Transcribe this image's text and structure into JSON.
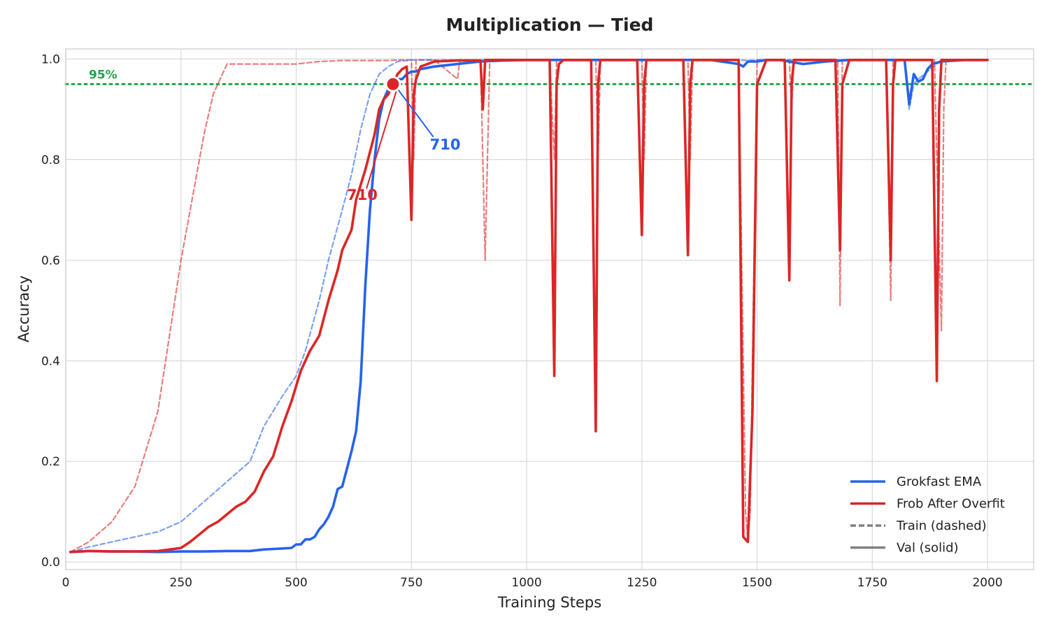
{
  "chart_data": {
    "type": "line",
    "title": "Multiplication — Tied",
    "xlabel": "Training Steps",
    "ylabel": "Accuracy",
    "xlim": [
      0,
      2100
    ],
    "ylim": [
      -0.015,
      1.02
    ],
    "x_ticks": [
      0,
      250,
      500,
      750,
      1000,
      1250,
      1500,
      1750,
      2000
    ],
    "x_tick_labels": [
      "0",
      "250",
      "500",
      "750",
      "1000",
      "1250",
      "1500",
      "1750",
      "2000"
    ],
    "y_ticks": [
      0.0,
      0.2,
      0.4,
      0.6,
      0.8,
      1.0
    ],
    "y_tick_labels": [
      "0.0",
      "0.2",
      "0.4",
      "0.6",
      "0.8",
      "1.0"
    ],
    "grid": true,
    "legend_position": "lower-right",
    "threshold": {
      "value": 0.95,
      "label": "95%",
      "color": "#22a34a",
      "style": "dotted"
    },
    "legend": [
      {
        "label": "Grokfast EMA",
        "color": "#2563eb",
        "style": "solid"
      },
      {
        "label": "Frob After Overfit",
        "color": "#dc2626",
        "style": "solid"
      },
      {
        "label": "Train (dashed)",
        "color": "#808080",
        "style": "dashed"
      },
      {
        "label": "Val (solid)",
        "color": "#808080",
        "style": "solid"
      }
    ],
    "annotations": [
      {
        "label": "710",
        "color": "#2563eb",
        "point": [
          710,
          0.95
        ],
        "text_at": [
          790,
          0.82
        ]
      },
      {
        "label": "710",
        "color": "#dc2626",
        "point": [
          710,
          0.95
        ],
        "text_at": [
          610,
          0.72
        ]
      }
    ],
    "series": [
      {
        "name": "Grokfast EMA",
        "role": "val",
        "color": "#2563eb",
        "style": "solid",
        "x": [
          10,
          50,
          100,
          150,
          200,
          250,
          300,
          350,
          400,
          430,
          470,
          490,
          500,
          510,
          520,
          530,
          540,
          550,
          560,
          570,
          580,
          590,
          600,
          610,
          620,
          630,
          640,
          650,
          660,
          670,
          680,
          690,
          700,
          710,
          720,
          730,
          740,
          750,
          760,
          770,
          800,
          850,
          900,
          950,
          1000,
          1050,
          1100,
          1200,
          1300,
          1400,
          1460,
          1470,
          1480,
          1500,
          1520,
          1550,
          1600,
          1650,
          1700,
          1750,
          1800,
          1820,
          1830,
          1840,
          1850,
          1860,
          1870,
          1880,
          1900,
          1950,
          2000
        ],
        "y": [
          0.02,
          0.022,
          0.021,
          0.021,
          0.02,
          0.021,
          0.021,
          0.022,
          0.022,
          0.025,
          0.027,
          0.028,
          0.035,
          0.035,
          0.045,
          0.045,
          0.05,
          0.065,
          0.075,
          0.09,
          0.11,
          0.145,
          0.15,
          0.185,
          0.22,
          0.26,
          0.36,
          0.55,
          0.7,
          0.8,
          0.88,
          0.92,
          0.94,
          0.95,
          0.96,
          0.96,
          0.97,
          0.975,
          0.975,
          0.98,
          0.985,
          0.99,
          0.995,
          0.997,
          0.998,
          0.998,
          0.998,
          0.998,
          0.998,
          0.998,
          0.99,
          0.985,
          0.995,
          0.995,
          0.998,
          0.998,
          0.99,
          0.995,
          0.998,
          0.998,
          0.998,
          0.998,
          0.91,
          0.97,
          0.955,
          0.96,
          0.98,
          0.99,
          0.995,
          0.998,
          0.998
        ]
      },
      {
        "name": "Grokfast EMA",
        "role": "train",
        "color": "#2563eb",
        "style": "dashed",
        "x": [
          10,
          50,
          100,
          150,
          200,
          250,
          300,
          350,
          400,
          430,
          470,
          500,
          520,
          550,
          570,
          600,
          620,
          640,
          660,
          680,
          700,
          710,
          720,
          750,
          800,
          850,
          900,
          950,
          1000,
          1200,
          1460,
          1480,
          1500,
          1700,
          1800,
          1820,
          1830,
          1840,
          1850,
          1900,
          1950,
          2000
        ],
        "y": [
          0.02,
          0.03,
          0.04,
          0.05,
          0.06,
          0.08,
          0.12,
          0.16,
          0.2,
          0.27,
          0.33,
          0.37,
          0.42,
          0.52,
          0.6,
          0.7,
          0.77,
          0.86,
          0.93,
          0.97,
          0.985,
          0.99,
          0.995,
          0.998,
          0.998,
          0.998,
          0.998,
          0.998,
          0.998,
          0.998,
          0.998,
          0.997,
          0.998,
          0.998,
          0.998,
          0.998,
          0.9,
          0.95,
          0.96,
          0.998,
          0.998,
          0.998
        ]
      },
      {
        "name": "Frob After Overfit",
        "role": "train",
        "color": "#dc2626",
        "style": "dashed",
        "x": [
          10,
          50,
          100,
          150,
          200,
          250,
          300,
          320,
          350,
          380,
          420,
          460,
          500,
          550,
          600,
          650,
          700,
          720,
          740,
          750,
          755,
          760,
          800,
          850,
          855,
          860,
          900,
          905,
          910,
          915,
          920,
          1000,
          1050,
          1060,
          1065,
          1070,
          1100,
          1150,
          1155,
          1160,
          1200,
          1250,
          1255,
          1260,
          1300,
          1350,
          1355,
          1360,
          1400,
          1460,
          1475,
          1480,
          1485,
          1490,
          1500,
          1550,
          1570,
          1575,
          1580,
          1600,
          1650,
          1675,
          1680,
          1685,
          1700,
          1750,
          1780,
          1790,
          1795,
          1800,
          1850,
          1885,
          1890,
          1900,
          1905,
          1910,
          1950,
          2000
        ],
        "y": [
          0.02,
          0.04,
          0.08,
          0.15,
          0.3,
          0.6,
          0.85,
          0.93,
          0.99,
          0.99,
          0.99,
          0.99,
          0.99,
          0.995,
          0.997,
          0.997,
          0.997,
          0.998,
          0.998,
          0.998,
          0.8,
          0.998,
          0.998,
          0.96,
          0.998,
          0.998,
          0.998,
          0.8,
          0.6,
          0.8,
          0.998,
          0.998,
          0.998,
          0.8,
          0.998,
          0.998,
          0.998,
          0.998,
          0.8,
          0.998,
          0.998,
          0.998,
          0.8,
          0.998,
          0.998,
          0.998,
          0.8,
          0.998,
          0.998,
          0.998,
          0.1,
          0.04,
          0.1,
          0.4,
          0.998,
          0.998,
          0.998,
          0.9,
          0.998,
          0.998,
          0.998,
          0.998,
          0.51,
          0.998,
          0.998,
          0.998,
          0.998,
          0.52,
          0.998,
          0.998,
          0.998,
          0.998,
          0.8,
          0.46,
          0.9,
          0.998,
          0.998,
          0.998
        ]
      },
      {
        "name": "Frob After Overfit",
        "role": "val",
        "color": "#dc2626",
        "style": "solid",
        "x": [
          10,
          50,
          100,
          150,
          200,
          250,
          270,
          290,
          310,
          330,
          350,
          370,
          390,
          410,
          430,
          450,
          470,
          490,
          510,
          530,
          550,
          570,
          590,
          600,
          620,
          630,
          650,
          670,
          680,
          690,
          700,
          710,
          720,
          730,
          740,
          750,
          755,
          760,
          770,
          800,
          850,
          900,
          905,
          910,
          915,
          930,
          1000,
          1050,
          1060,
          1065,
          1070,
          1080,
          1100,
          1140,
          1150,
          1155,
          1160,
          1170,
          1200,
          1240,
          1250,
          1255,
          1260,
          1300,
          1340,
          1350,
          1355,
          1360,
          1400,
          1460,
          1470,
          1480,
          1490,
          1500,
          1520,
          1550,
          1560,
          1570,
          1575,
          1580,
          1600,
          1670,
          1680,
          1685,
          1700,
          1750,
          1780,
          1790,
          1795,
          1800,
          1850,
          1880,
          1890,
          1895,
          1900,
          1910,
          1950,
          2000
        ],
        "y": [
          0.02,
          0.022,
          0.021,
          0.021,
          0.022,
          0.028,
          0.04,
          0.055,
          0.07,
          0.08,
          0.095,
          0.11,
          0.12,
          0.14,
          0.18,
          0.21,
          0.27,
          0.32,
          0.38,
          0.42,
          0.45,
          0.52,
          0.58,
          0.62,
          0.66,
          0.72,
          0.78,
          0.85,
          0.9,
          0.92,
          0.93,
          0.95,
          0.97,
          0.98,
          0.985,
          0.68,
          0.93,
          0.96,
          0.985,
          0.995,
          0.997,
          0.997,
          0.9,
          0.998,
          0.998,
          0.998,
          0.998,
          0.998,
          0.37,
          0.95,
          0.99,
          0.998,
          0.998,
          0.998,
          0.26,
          0.95,
          0.998,
          0.998,
          0.998,
          0.998,
          0.65,
          0.95,
          0.998,
          0.998,
          0.998,
          0.61,
          0.95,
          0.998,
          0.998,
          0.998,
          0.05,
          0.04,
          0.3,
          0.95,
          0.998,
          0.998,
          0.998,
          0.56,
          0.95,
          0.998,
          0.998,
          0.998,
          0.62,
          0.95,
          0.998,
          0.998,
          0.998,
          0.6,
          0.95,
          0.998,
          0.998,
          0.998,
          0.36,
          0.9,
          0.998,
          0.998,
          0.998,
          0.998
        ]
      }
    ]
  }
}
